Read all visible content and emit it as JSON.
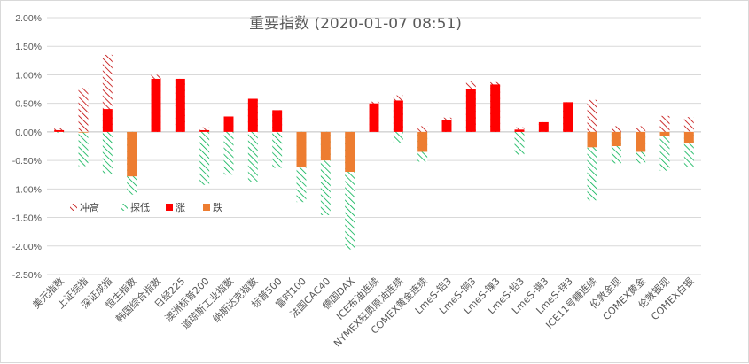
{
  "chart_data": {
    "type": "bar",
    "title": "重要指数 (2020-01-07 08:51)",
    "ylim": [
      -0.025,
      0.02
    ],
    "yticks": [
      0.02,
      0.015,
      0.01,
      0.005,
      0,
      -0.005,
      -0.01,
      -0.015,
      -0.02,
      -0.025
    ],
    "ytick_labels": [
      "2.00%",
      "1.50%",
      "1.00%",
      "0.50%",
      "0.00%",
      "-0.50%",
      "-1.00%",
      "-1.50%",
      "-2.00%",
      "-2.50%"
    ],
    "grid": true,
    "legend_position": "lower-left inside plot",
    "colors": {
      "up": "#ff0000",
      "down": "#ed7d31",
      "high_hatch": "#c00000",
      "low_hatch": "#00b050"
    },
    "series": [
      {
        "name": "冲高",
        "key": "high"
      },
      {
        "name": "探低",
        "key": "low"
      },
      {
        "name": "涨",
        "key": "up"
      },
      {
        "name": "跌",
        "key": "down"
      }
    ],
    "categories": [
      "美元指数",
      "上证综指",
      "深证成指",
      "恒生指数",
      "韩国综合指数",
      "日经225",
      "澳洲标普200",
      "道琼斯工业指数",
      "纳斯达克指数",
      "标普500",
      "富时100",
      "法国CAC40",
      "德国DAX",
      "ICE布油连续",
      "NYMEX轻质原油连续",
      "COMEX黄金连续",
      "LmeS-铝3",
      "LmeS-铜3",
      "LmeS-镍3",
      "LmeS-铅3",
      "LmeS-锡3",
      "LmeS-锌3",
      "ICE11号糖连续",
      "伦敦金现",
      "COMEX黄金",
      "伦敦银现",
      "COMEX白银"
    ],
    "change": [
      0.0003,
      -0.0001,
      0.004,
      -0.0078,
      0.0093,
      0.0093,
      0.0003,
      0.0027,
      0.0058,
      0.0038,
      -0.0062,
      -0.005,
      -0.007,
      0.005,
      0.0055,
      -0.0035,
      0.002,
      0.0075,
      0.0083,
      0.0004,
      0.0017,
      0.0052,
      -0.0027,
      -0.0025,
      -0.0035,
      -0.0007,
      -0.002
    ],
    "high": [
      0.0007,
      0.0077,
      0.0135,
      0.0,
      0.01,
      0.0093,
      0.0008,
      0.0027,
      0.0058,
      0.0038,
      0.0,
      0.0,
      0.0,
      0.0053,
      0.0064,
      0.001,
      0.0025,
      0.0088,
      0.0087,
      0.0008,
      0.0017,
      0.0052,
      0.0056,
      0.001,
      0.001,
      0.0028,
      0.0026
    ],
    "low": [
      -0.0001,
      -0.006,
      -0.0074,
      -0.011,
      0.0,
      0.0,
      -0.0093,
      -0.0075,
      -0.0087,
      -0.0063,
      -0.0123,
      -0.0146,
      -0.0206,
      0.0,
      -0.002,
      -0.0052,
      0.0,
      0.0,
      0.0,
      -0.004,
      0.0,
      0.0,
      -0.012,
      -0.0055,
      -0.0055,
      -0.0068,
      -0.0062
    ]
  }
}
